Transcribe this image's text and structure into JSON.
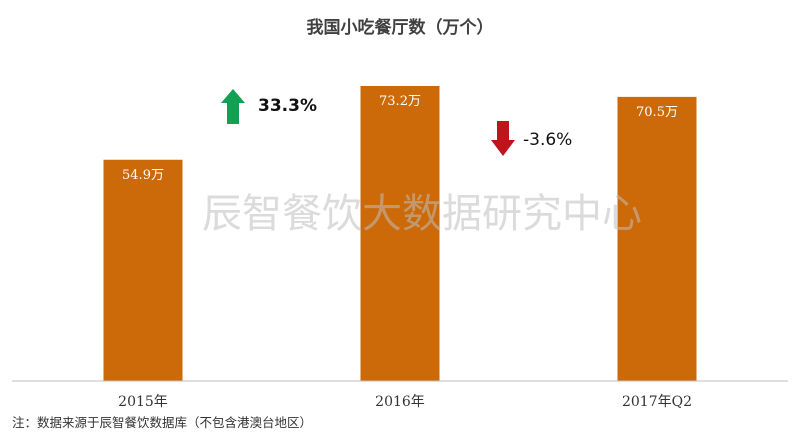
{
  "chart_data": {
    "type": "bar",
    "title": "我国小吃餐厅数（万个）",
    "categories": [
      "2015年",
      "2016年",
      "2017年Q2"
    ],
    "values": [
      54.9,
      73.2,
      70.5
    ],
    "value_labels": [
      "54.9万",
      "73.2万",
      "70.5万"
    ],
    "ylim": [
      0,
      73.2
    ],
    "bar_color": "#cc6a0a",
    "grid": false,
    "changes": [
      {
        "label": "33.3%",
        "direction": "up",
        "color": "#12a052"
      },
      {
        "label": "-3.6%",
        "direction": "down",
        "color": "#c0141c"
      }
    ]
  },
  "watermark": "辰智餐饮大数据研究中心",
  "footnote": "注：数据来源于辰智餐饮数据库（不包含港澳台地区）"
}
